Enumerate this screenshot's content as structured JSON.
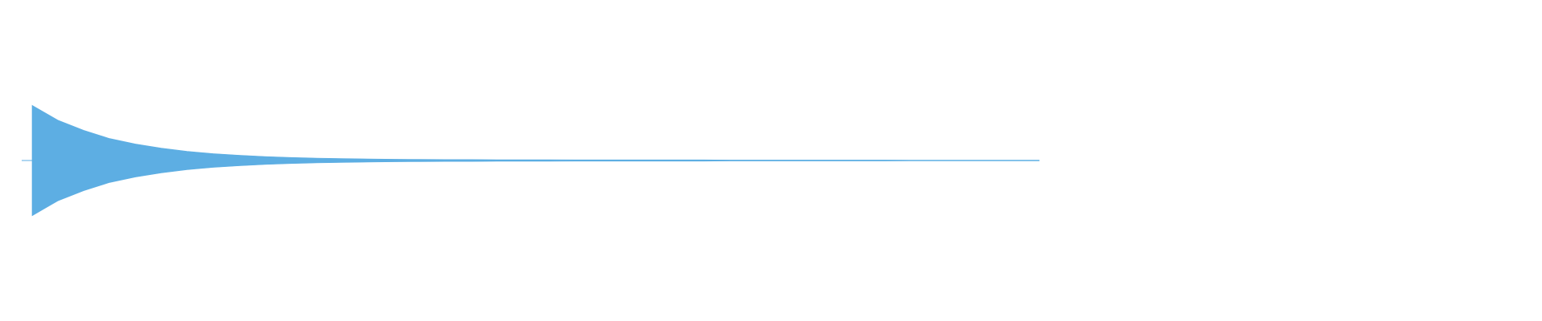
{
  "waveform": {
    "color": "#5daee3",
    "envelope": [
      0.344,
      0.251,
      0.188,
      0.137,
      0.103,
      0.077,
      0.057,
      0.043,
      0.033,
      0.025,
      0.019,
      0.015,
      0.012,
      0.01,
      0.008,
      0.007,
      0.006,
      0.006,
      0.005,
      0.005,
      0.005,
      0.004,
      0.004,
      0.004,
      0.004,
      0.004,
      0.004,
      0.003,
      0.003,
      0.003,
      0.003,
      0.003,
      0.003,
      0.003,
      0.002,
      0.002,
      0.002,
      0.002,
      0.002,
      0.002
    ]
  }
}
